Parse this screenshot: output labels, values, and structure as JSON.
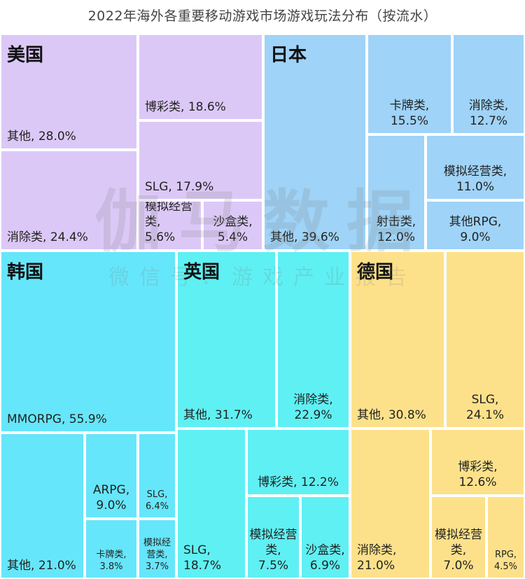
{
  "title": "2022年海外各重要移动游戏市场游戏玩法分布（按流水）",
  "watermark": {
    "brand": "伽马数据",
    "sub": "微信号：游戏产业报告"
  },
  "chart_data": {
    "type": "treemap",
    "unit": "%",
    "markets": [
      {
        "name": "美国",
        "color": "#dcc8f7",
        "items": [
          {
            "label": "其他",
            "value": 28.0,
            "text": "其他, 28.0%"
          },
          {
            "label": "消除类",
            "value": 24.4,
            "text": "消除类, 24.4%"
          },
          {
            "label": "博彩类",
            "value": 18.6,
            "text": "博彩类, 18.6%"
          },
          {
            "label": "SLG",
            "value": 17.9,
            "text": "SLG, 17.9%"
          },
          {
            "label": "模拟经营类",
            "value": 5.6,
            "text": "模拟经营类, 5.6%"
          },
          {
            "label": "沙盒类",
            "value": 5.4,
            "text": "沙盒类, 5.4%"
          }
        ]
      },
      {
        "name": "日本",
        "color": "#9fd3f7",
        "items": [
          {
            "label": "其他",
            "value": 39.6,
            "text": "其他, 39.6%"
          },
          {
            "label": "卡牌类",
            "value": 15.5,
            "text": "卡牌类, 15.5%"
          },
          {
            "label": "消除类",
            "value": 12.7,
            "text": "消除类, 12.7%"
          },
          {
            "label": "射击类",
            "value": 12.0,
            "text": "射击类, 12.0%"
          },
          {
            "label": "模拟经营类",
            "value": 11.0,
            "text": "模拟经营类, 11.0%"
          },
          {
            "label": "其他RPG",
            "value": 9.0,
            "text": "其他RPG, 9.0%"
          }
        ]
      },
      {
        "name": "韩国",
        "color": "#66e6fa",
        "items": [
          {
            "label": "MMORPG",
            "value": 55.9,
            "text": "MMORPG, 55.9%"
          },
          {
            "label": "其他",
            "value": 21.0,
            "text": "其他, 21.0%"
          },
          {
            "label": "ARPG",
            "value": 9.0,
            "text": "ARPG, 9.0%"
          },
          {
            "label": "SLG",
            "value": 6.4,
            "text": "SLG, 6.4%"
          },
          {
            "label": "卡牌类",
            "value": 3.8,
            "text": "卡牌类, 3.8%"
          },
          {
            "label": "模拟经营类",
            "value": 3.7,
            "text": "模拟经营类, 3.7%"
          }
        ]
      },
      {
        "name": "英国",
        "color": "#5ff0f3",
        "items": [
          {
            "label": "其他",
            "value": 31.7,
            "text": "其他, 31.7%"
          },
          {
            "label": "消除类",
            "value": 22.9,
            "text": "消除类, 22.9%"
          },
          {
            "label": "SLG",
            "value": 18.7,
            "text": "SLG, 18.7%"
          },
          {
            "label": "博彩类",
            "value": 12.2,
            "text": "博彩类, 12.2%"
          },
          {
            "label": "模拟经营类",
            "value": 7.5,
            "text": "模拟经营类, 7.5%"
          },
          {
            "label": "沙盒类",
            "value": 6.9,
            "text": "沙盒类, 6.9%"
          }
        ]
      },
      {
        "name": "德国",
        "color": "#fde18a",
        "items": [
          {
            "label": "其他",
            "value": 30.8,
            "text": "其他, 30.8%"
          },
          {
            "label": "SLG",
            "value": 24.1,
            "text": "SLG, 24.1%"
          },
          {
            "label": "消除类",
            "value": 21.0,
            "text": "消除类, 21.0%"
          },
          {
            "label": "博彩类",
            "value": 12.6,
            "text": "博彩类, 12.6%"
          },
          {
            "label": "模拟经营类",
            "value": 7.0,
            "text": "模拟经营类, 7.0%"
          },
          {
            "label": "RPG",
            "value": 4.5,
            "text": "RPG, 4.5%"
          }
        ]
      }
    ]
  }
}
